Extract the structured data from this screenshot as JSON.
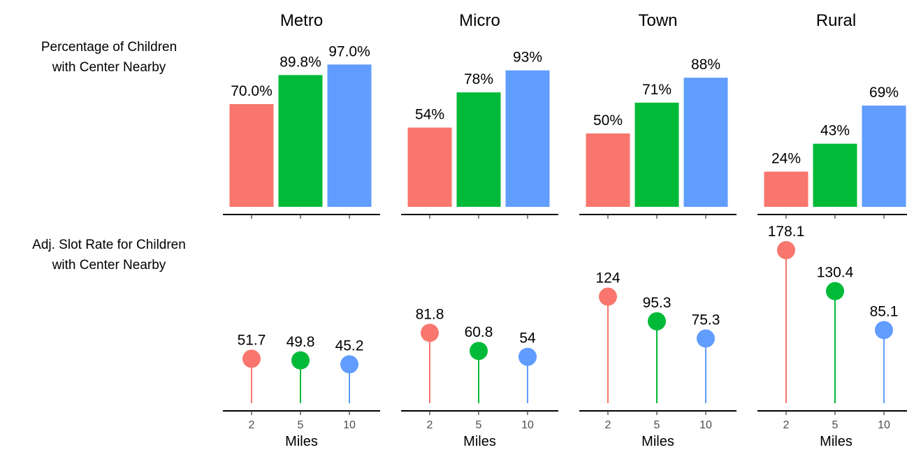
{
  "chart_data": {
    "type": "bar",
    "row_labels": [
      [
        "Percentage of Children",
        "with Center Nearby"
      ],
      [
        "Adj. Slot Rate for Children",
        "with Center Nearby"
      ]
    ],
    "panels": [
      "Metro",
      "Micro",
      "Town",
      "Rural"
    ],
    "categories": [
      "2",
      "5",
      "10"
    ],
    "xlabel": "Miles",
    "colors": [
      "#F8766D",
      "#00BA38",
      "#619CFF"
    ],
    "percentage": {
      "values": [
        [
          70.0,
          89.8,
          97.0
        ],
        [
          54,
          78,
          93
        ],
        [
          50,
          71,
          88
        ],
        [
          24,
          43,
          69
        ]
      ],
      "labels": [
        [
          "70.0%",
          "89.8%",
          "97.0%"
        ],
        [
          "54%",
          "78%",
          "93%"
        ],
        [
          "50%",
          "71%",
          "88%"
        ],
        [
          "24%",
          "43%",
          "69%"
        ]
      ],
      "ylim": [
        0,
        100
      ]
    },
    "slot_rate": {
      "type": "lollipop",
      "values": [
        [
          51.7,
          49.8,
          45.2
        ],
        [
          81.8,
          60.8,
          54
        ],
        [
          124,
          95.3,
          75.3
        ],
        [
          178.1,
          130.4,
          85.1
        ]
      ],
      "labels": [
        [
          "51.7",
          "49.8",
          "45.2"
        ],
        [
          "81.8",
          "60.8",
          "54"
        ],
        [
          "124",
          "95.3",
          "75.3"
        ],
        [
          "178.1",
          "130.4",
          "85.1"
        ]
      ],
      "ylim": [
        0,
        178.1
      ]
    },
    "grid": false,
    "legend": "none"
  }
}
